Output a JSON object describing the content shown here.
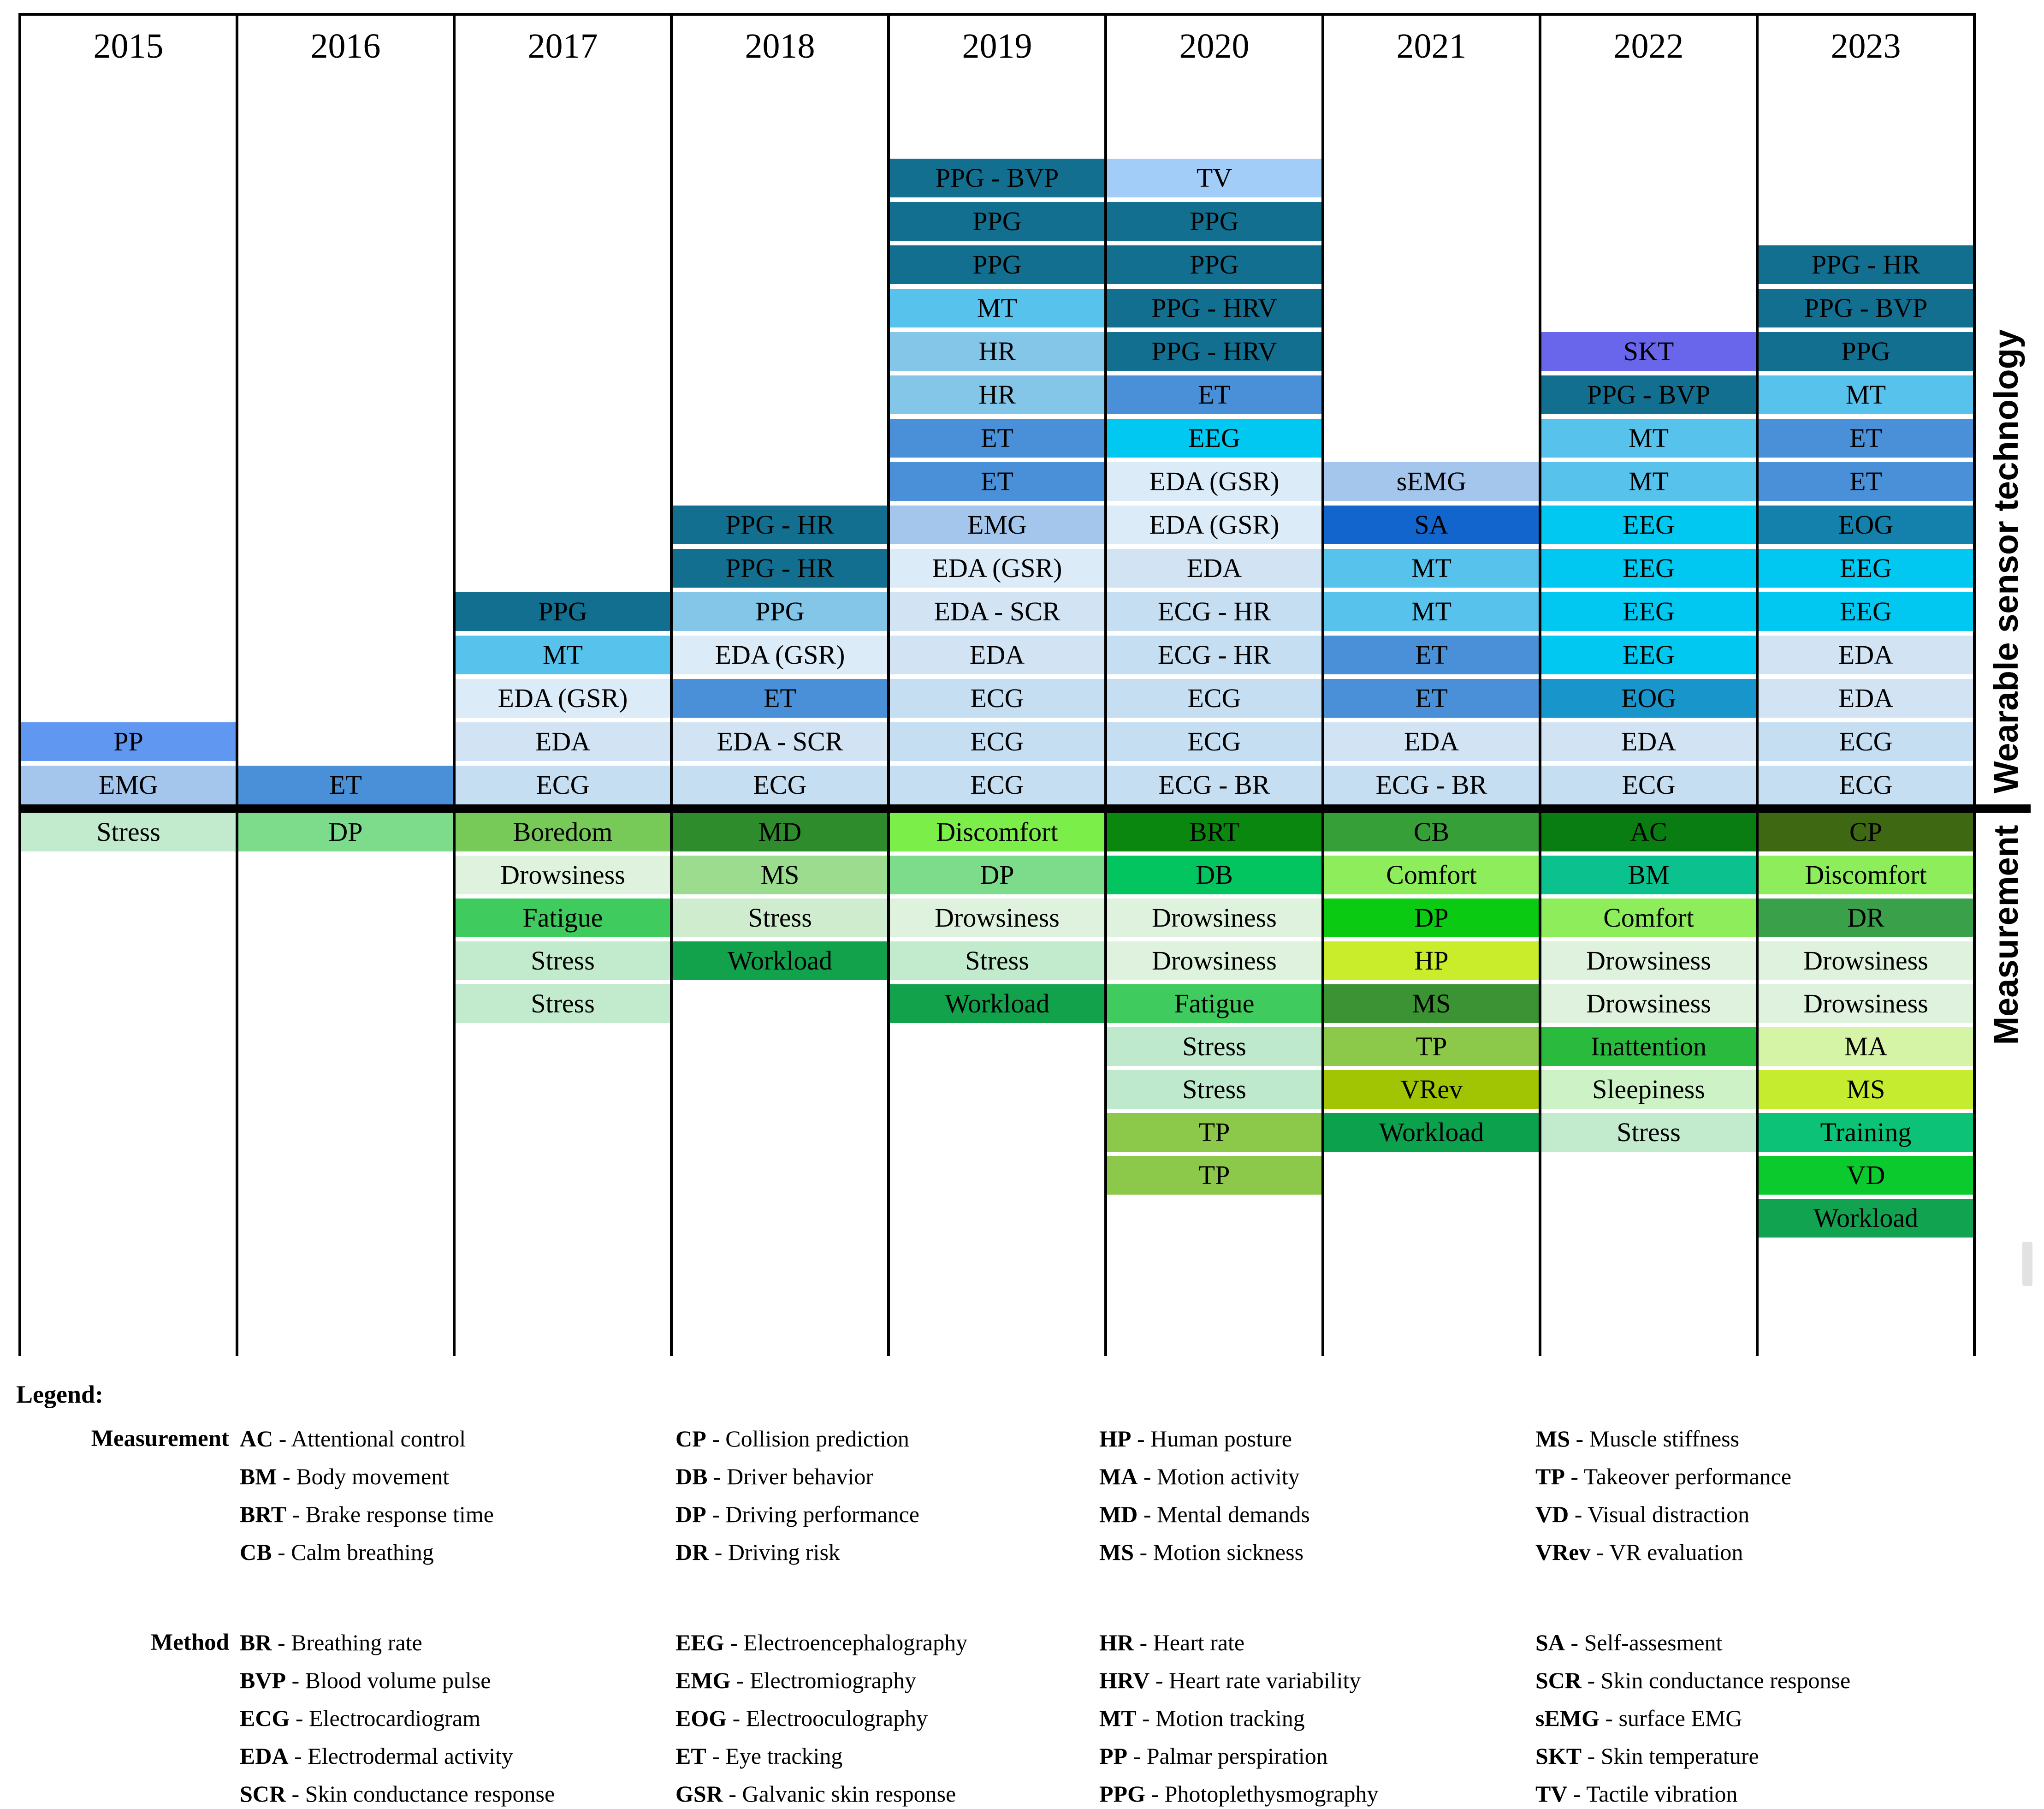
{
  "header": {
    "years": [
      "2015",
      "2016",
      "2017",
      "2018",
      "2019",
      "2020",
      "2021",
      "2022",
      "2023"
    ]
  },
  "axis": {
    "sensor_label": "Wearable sensor technology",
    "measurement_label": "Measurement"
  },
  "chart_data": {
    "type": "table",
    "title": "Wearable sensor technologies and measurements per year",
    "x_categories": [
      "2015",
      "2016",
      "2017",
      "2018",
      "2019",
      "2020",
      "2021",
      "2022",
      "2023"
    ],
    "row_sections": [
      "Wearable sensor technology",
      "Measurement"
    ],
    "columns": [
      {
        "year": "2015",
        "sensors": [
          {
            "label": "PP",
            "color": "#6097f0"
          },
          {
            "label": "EMG",
            "color": "#a4c6ec"
          }
        ],
        "measurements": [
          {
            "label": "Stress",
            "color": "#c2ebcd"
          }
        ]
      },
      {
        "year": "2016",
        "sensors": [
          {
            "label": "ET",
            "color": "#4a90d8"
          }
        ],
        "measurements": [
          {
            "label": "DP",
            "color": "#7cdc8c"
          }
        ]
      },
      {
        "year": "2017",
        "sensors": [
          {
            "label": "PPG",
            "color": "#136f90"
          },
          {
            "label": "MT",
            "color": "#57c2ec"
          },
          {
            "label": "EDA (GSR)",
            "color": "#dcebf8"
          },
          {
            "label": "EDA",
            "color": "#d2e4f4"
          },
          {
            "label": "ECG",
            "color": "#c6def2"
          }
        ],
        "measurements": [
          {
            "label": "Boredom",
            "color": "#78ca58"
          },
          {
            "label": "Drowsiness",
            "color": "#def2de"
          },
          {
            "label": "Fatigue",
            "color": "#3fcb5e"
          },
          {
            "label": "Stress",
            "color": "#c2ebcd"
          },
          {
            "label": "Stress",
            "color": "#c2ebcd"
          }
        ]
      },
      {
        "year": "2018",
        "sensors": [
          {
            "label": "PPG - HR",
            "color": "#136f90"
          },
          {
            "label": "PPG - HR",
            "color": "#136f90"
          },
          {
            "label": "PPG",
            "color": "#84c6e8"
          },
          {
            "label": "EDA (GSR)",
            "color": "#dcebf8"
          },
          {
            "label": "ET",
            "color": "#4a90d8"
          },
          {
            "label": "EDA - SCR",
            "color": "#d2e4f4"
          },
          {
            "label": "ECG",
            "color": "#c6def2"
          }
        ],
        "measurements": [
          {
            "label": "MD",
            "color": "#2f8c2c"
          },
          {
            "label": "MS",
            "color": "#9bdc8e"
          },
          {
            "label": "Stress",
            "color": "#cfeccf"
          },
          {
            "label": "Workload",
            "color": "#12a24c"
          }
        ]
      },
      {
        "year": "2019",
        "sensors": [
          {
            "label": "PPG - BVP",
            "color": "#136f90"
          },
          {
            "label": "PPG",
            "color": "#136f90"
          },
          {
            "label": "PPG",
            "color": "#136f90"
          },
          {
            "label": "MT",
            "color": "#57c2ec"
          },
          {
            "label": "HR",
            "color": "#84c6e8"
          },
          {
            "label": "HR",
            "color": "#84c6e8"
          },
          {
            "label": "ET",
            "color": "#4a90d8"
          },
          {
            "label": "ET",
            "color": "#4a90d8"
          },
          {
            "label": "EMG",
            "color": "#a4c6ec"
          },
          {
            "label": "EDA (GSR)",
            "color": "#dcebf8"
          },
          {
            "label": "EDA - SCR",
            "color": "#d2e4f4"
          },
          {
            "label": "EDA",
            "color": "#d2e4f4"
          },
          {
            "label": "ECG",
            "color": "#c6def2"
          },
          {
            "label": "ECG",
            "color": "#c6def2"
          },
          {
            "label": "ECG",
            "color": "#c6def2"
          }
        ],
        "measurements": [
          {
            "label": "Discomfort",
            "color": "#7bee4a"
          },
          {
            "label": "DP",
            "color": "#7cdc8c"
          },
          {
            "label": "Drowsiness",
            "color": "#def2de"
          },
          {
            "label": "Stress",
            "color": "#c2ebcd"
          },
          {
            "label": "Workload",
            "color": "#12a24c"
          }
        ]
      },
      {
        "year": "2020",
        "sensors": [
          {
            "label": "TV",
            "color": "#a2cdf8"
          },
          {
            "label": "PPG",
            "color": "#136f90"
          },
          {
            "label": "PPG",
            "color": "#136f90"
          },
          {
            "label": "PPG - HRV",
            "color": "#136f90"
          },
          {
            "label": "PPG - HRV",
            "color": "#136f90"
          },
          {
            "label": "ET",
            "color": "#4a90d8"
          },
          {
            "label": "EEG",
            "color": "#00c8f0"
          },
          {
            "label": "EDA (GSR)",
            "color": "#dcebf8"
          },
          {
            "label": "EDA (GSR)",
            "color": "#dcebf8"
          },
          {
            "label": "EDA",
            "color": "#d2e4f4"
          },
          {
            "label": "ECG - HR",
            "color": "#c6def2"
          },
          {
            "label": "ECG - HR",
            "color": "#c6def2"
          },
          {
            "label": "ECG",
            "color": "#c6def2"
          },
          {
            "label": "ECG",
            "color": "#c6def2"
          },
          {
            "label": "ECG - BR",
            "color": "#c6def2"
          }
        ],
        "measurements": [
          {
            "label": "BRT",
            "color": "#0a870e"
          },
          {
            "label": "DB",
            "color": "#02c560"
          },
          {
            "label": "Drowsiness",
            "color": "#def2de"
          },
          {
            "label": "Drowsiness",
            "color": "#def2de"
          },
          {
            "label": "Fatigue",
            "color": "#3fcb5e"
          },
          {
            "label": "Stress",
            "color": "#bfe9cd"
          },
          {
            "label": "Stress",
            "color": "#bfe9cd"
          },
          {
            "label": "TP",
            "color": "#8cc84a"
          },
          {
            "label": "TP",
            "color": "#8cc84a"
          }
        ]
      },
      {
        "year": "2021",
        "sensors": [
          {
            "label": "sEMG",
            "color": "#a4c6ec"
          },
          {
            "label": "SA",
            "color": "#1165cc"
          },
          {
            "label": "MT",
            "color": "#57c2ec"
          },
          {
            "label": "MT",
            "color": "#57c2ec"
          },
          {
            "label": "ET",
            "color": "#4a90d8"
          },
          {
            "label": "ET",
            "color": "#4a90d8"
          },
          {
            "label": "EDA",
            "color": "#d2e4f4"
          },
          {
            "label": "ECG - BR",
            "color": "#c6def2"
          }
        ],
        "measurements": [
          {
            "label": "CB",
            "color": "#379f38"
          },
          {
            "label": "Comfort",
            "color": "#8eed5a"
          },
          {
            "label": "DP",
            "color": "#0acb12"
          },
          {
            "label": "HP",
            "color": "#c9ed2a"
          },
          {
            "label": "MS",
            "color": "#3b9334"
          },
          {
            "label": "TP",
            "color": "#8cc84a"
          },
          {
            "label": "VRev",
            "color": "#a1c502"
          },
          {
            "label": "Workload",
            "color": "#0ca14c"
          }
        ]
      },
      {
        "year": "2022",
        "sensors": [
          {
            "label": "SKT",
            "color": "#6a66ec"
          },
          {
            "label": "PPG - BVP",
            "color": "#136f90"
          },
          {
            "label": "MT",
            "color": "#57c2ec"
          },
          {
            "label": "MT",
            "color": "#57c2ec"
          },
          {
            "label": "EEG",
            "color": "#00c8f0"
          },
          {
            "label": "EEG",
            "color": "#00c8f0"
          },
          {
            "label": "EEG",
            "color": "#00c8f0"
          },
          {
            "label": "EEG",
            "color": "#00c8f0"
          },
          {
            "label": "EOG",
            "color": "#1896cc"
          },
          {
            "label": "EDA",
            "color": "#d2e4f4"
          },
          {
            "label": "ECG",
            "color": "#c6def2"
          }
        ],
        "measurements": [
          {
            "label": "AC",
            "color": "#0a7d12"
          },
          {
            "label": "BM",
            "color": "#0bc28e"
          },
          {
            "label": "Comfort",
            "color": "#8eed5a"
          },
          {
            "label": "Drowsiness",
            "color": "#def2de"
          },
          {
            "label": "Drowsiness",
            "color": "#def2de"
          },
          {
            "label": "Inattention",
            "color": "#2aba3e"
          },
          {
            "label": "Sleepiness",
            "color": "#ccf2c6"
          },
          {
            "label": "Stress",
            "color": "#c2ebcd"
          }
        ]
      },
      {
        "year": "2023",
        "sensors": [
          {
            "label": "PPG - HR",
            "color": "#136f90"
          },
          {
            "label": "PPG - BVP",
            "color": "#136f90"
          },
          {
            "label": "PPG",
            "color": "#136f90"
          },
          {
            "label": "MT",
            "color": "#57c2ec"
          },
          {
            "label": "ET",
            "color": "#4a90d8"
          },
          {
            "label": "ET",
            "color": "#4a90d8"
          },
          {
            "label": "EOG",
            "color": "#1480ac"
          },
          {
            "label": "EEG",
            "color": "#00c8f0"
          },
          {
            "label": "EEG",
            "color": "#00c8f0"
          },
          {
            "label": "EDA",
            "color": "#d2e4f4"
          },
          {
            "label": "EDA",
            "color": "#d2e4f4"
          },
          {
            "label": "ECG",
            "color": "#c6def2"
          },
          {
            "label": "ECG",
            "color": "#c6def2"
          }
        ],
        "measurements": [
          {
            "label": "CP",
            "color": "#3f6812"
          },
          {
            "label": "Discomfort",
            "color": "#8eed5a"
          },
          {
            "label": "DR",
            "color": "#3aa14a"
          },
          {
            "label": "Drowsiness",
            "color": "#def2de"
          },
          {
            "label": "Drowsiness",
            "color": "#def2de"
          },
          {
            "label": "MA",
            "color": "#d6f4a6"
          },
          {
            "label": "MS",
            "color": "#c6ec30"
          },
          {
            "label": "Training",
            "color": "#0bc276"
          },
          {
            "label": "VD",
            "color": "#0aca2e"
          },
          {
            "label": "Workload",
            "color": "#12a350"
          }
        ]
      }
    ]
  },
  "legend": {
    "title": "Legend:",
    "groups": [
      {
        "label": "Measurement",
        "columns": [
          [
            {
              "abbr": "AC",
              "desc": "Attentional control"
            },
            {
              "abbr": "BM",
              "desc": "Body movement"
            },
            {
              "abbr": "BRT",
              "desc": "Brake response time"
            },
            {
              "abbr": "CB",
              "desc": "Calm breathing"
            }
          ],
          [
            {
              "abbr": "CP",
              "desc": "Collision prediction"
            },
            {
              "abbr": "DB",
              "desc": "Driver behavior"
            },
            {
              "abbr": "DP",
              "desc": "Driving performance"
            },
            {
              "abbr": "DR",
              "desc": "Driving risk"
            }
          ],
          [
            {
              "abbr": "HP",
              "desc": "Human posture"
            },
            {
              "abbr": "MA",
              "desc": "Motion activity"
            },
            {
              "abbr": "MD",
              "desc": "Mental demands"
            },
            {
              "abbr": "MS",
              "desc": "Motion sickness"
            }
          ],
          [
            {
              "abbr": "MS",
              "desc": "Muscle stiffness"
            },
            {
              "abbr": "TP",
              "desc": "Takeover performance"
            },
            {
              "abbr": "VD",
              "desc": "Visual distraction"
            },
            {
              "abbr": "VRev",
              "desc": "VR evaluation"
            }
          ]
        ]
      },
      {
        "label": "Method",
        "columns": [
          [
            {
              "abbr": "BR",
              "desc": "Breathing rate"
            },
            {
              "abbr": "BVP",
              "desc": "Blood volume pulse"
            },
            {
              "abbr": "ECG",
              "desc": "Electrocardiogram"
            },
            {
              "abbr": "EDA",
              "desc": "Electrodermal activity"
            },
            {
              "abbr": "SCR",
              "desc": "Skin conductance response"
            }
          ],
          [
            {
              "abbr": "EEG",
              "desc": "Electroencephalography"
            },
            {
              "abbr": "EMG",
              "desc": "Electromiography"
            },
            {
              "abbr": "EOG",
              "desc": "Electrooculography"
            },
            {
              "abbr": "ET",
              "desc": "Eye tracking"
            },
            {
              "abbr": "GSR",
              "desc": "Galvanic skin response"
            }
          ],
          [
            {
              "abbr": "HR",
              "desc": "Heart rate"
            },
            {
              "abbr": "HRV",
              "desc": "Heart rate variability"
            },
            {
              "abbr": "MT",
              "desc": "Motion tracking"
            },
            {
              "abbr": "PP",
              "desc": "Palmar perspiration"
            },
            {
              "abbr": "PPG",
              "desc": "Photoplethysmography"
            }
          ],
          [
            {
              "abbr": "SA",
              "desc": "Self-assesment"
            },
            {
              "abbr": "SCR",
              "desc": "Skin conductance response"
            },
            {
              "abbr": "sEMG",
              "desc": "surface EMG"
            },
            {
              "abbr": "SKT",
              "desc": "Skin temperature"
            },
            {
              "abbr": "TV",
              "desc": "Tactile vibration"
            }
          ]
        ]
      }
    ]
  }
}
